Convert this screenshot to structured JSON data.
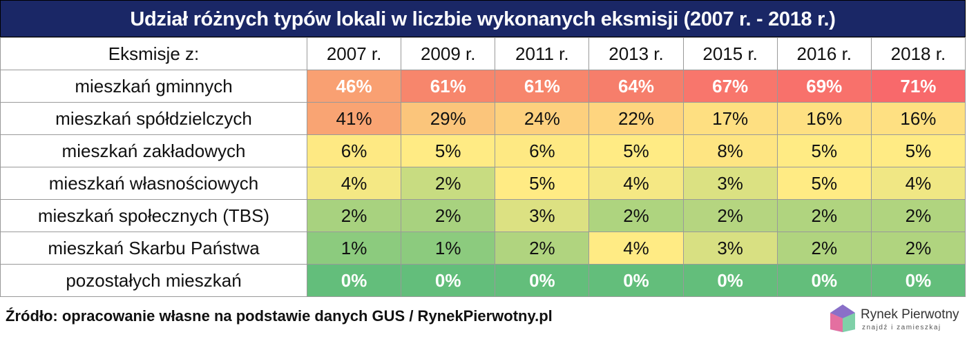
{
  "title": "Udział różnych typów lokali w liczbie wykonanych eksmisji (2007 r. - 2018 r.)",
  "table": {
    "header": [
      "Eksmisje z:",
      "2007 r.",
      "2009 r.",
      "2011 r.",
      "2013 r.",
      "2015 r.",
      "2016 r.",
      "2018 r."
    ],
    "rows": [
      [
        "mieszkań gminnych",
        "46%",
        "61%",
        "61%",
        "64%",
        "67%",
        "69%",
        "71%"
      ],
      [
        "mieszkań spółdzielczych",
        "41%",
        "29%",
        "24%",
        "22%",
        "17%",
        "16%",
        "16%"
      ],
      [
        "mieszkań zakładowych",
        "6%",
        "5%",
        "6%",
        "5%",
        "8%",
        "5%",
        "5%"
      ],
      [
        "mieszkań własnościowych",
        "4%",
        "2%",
        "5%",
        "4%",
        "3%",
        "5%",
        "4%"
      ],
      [
        "mieszkań społecznych (TBS)",
        "2%",
        "2%",
        "3%",
        "2%",
        "2%",
        "2%",
        "2%"
      ],
      [
        "mieszkań Skarbu Państwa",
        "1%",
        "1%",
        "2%",
        "4%",
        "3%",
        "2%",
        "2%"
      ],
      [
        "pozostałych mieszkań",
        "0%",
        "0%",
        "0%",
        "0%",
        "0%",
        "0%",
        "0%"
      ]
    ],
    "cell_colors": [
      [
        "#f9a072",
        "#f7866c",
        "#f7866c",
        "#f67e6b",
        "#f8766c",
        "#f8716b",
        "#f8696b"
      ],
      [
        "#f9a473",
        "#fbc57b",
        "#fdd07e",
        "#fed57f",
        "#fedf81",
        "#fee082",
        "#fee082"
      ],
      [
        "#fee983",
        "#ffeb84",
        "#fee983",
        "#ffeb84",
        "#fee582",
        "#ffeb84",
        "#ffeb84"
      ],
      [
        "#f4e884",
        "#c8dc81",
        "#ffeb84",
        "#f5e884",
        "#dbe182",
        "#ffeb84",
        "#f0e784"
      ],
      [
        "#a8d27f",
        "#a8d27f",
        "#dce182",
        "#aed47f",
        "#b5d580",
        "#b0d47f",
        "#b0d47f"
      ],
      [
        "#8ccb7e",
        "#8ccb7e",
        "#b0d47f",
        "#ffeb84",
        "#d8e082",
        "#b0d47f",
        "#b0d47f"
      ],
      [
        "#63be7b",
        "#63be7b",
        "#63be7b",
        "#63be7b",
        "#63be7b",
        "#63be7b",
        "#63be7b"
      ]
    ]
  },
  "footer": {
    "source": "Źródło: opracowanie własne na podstawie danych GUS / RynekPierwotny.pl",
    "logo_name": "Rynek Pierwotny",
    "logo_tagline": "znajdź i zamieszkaj"
  }
}
